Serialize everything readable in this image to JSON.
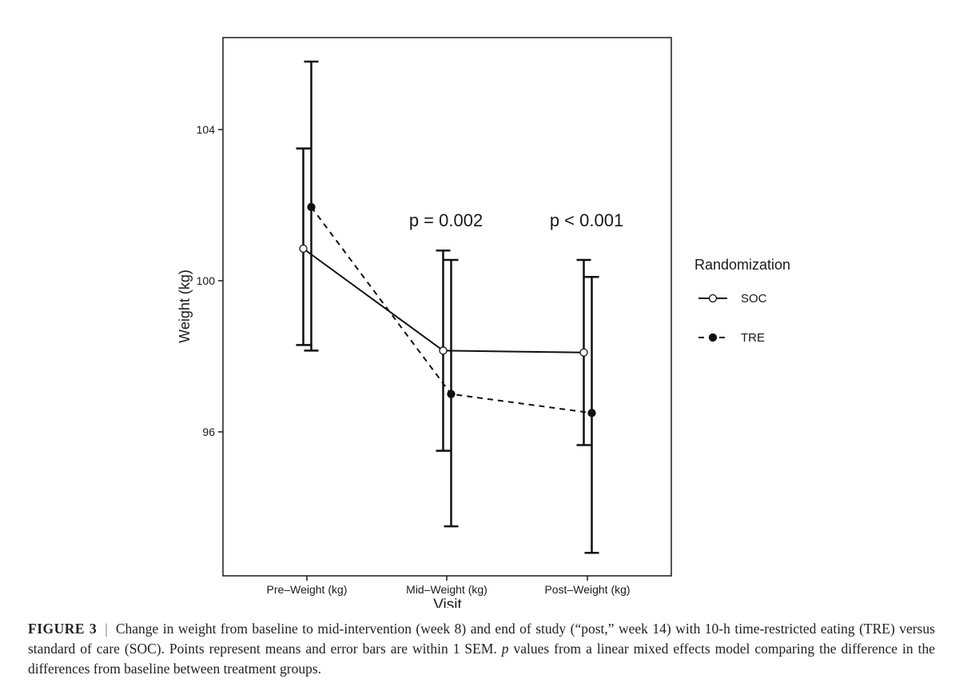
{
  "chart_data": {
    "type": "line",
    "xlabel": "Visit",
    "ylabel": "Weight (kg)",
    "categories": [
      "Pre–Weight (kg)",
      "Mid–Weight (kg)",
      "Post–Weight (kg)"
    ],
    "yticks": [
      96,
      100,
      104
    ],
    "ylim": [
      92.8,
      106.4
    ],
    "grid": false,
    "legend": {
      "title": "Randomization",
      "placement": "right",
      "items": [
        {
          "label": "SOC",
          "style": "solid line, open circle"
        },
        {
          "label": "TRE",
          "style": "dashed line, filled circle"
        }
      ]
    },
    "series": [
      {
        "name": "SOC",
        "values": [
          100.85,
          98.15,
          98.1
        ],
        "error_low": [
          98.3,
          95.5,
          95.65
        ],
        "error_high": [
          103.5,
          100.8,
          100.55
        ]
      },
      {
        "name": "TRE",
        "values": [
          101.95,
          97.0,
          96.5
        ],
        "error_low": [
          98.15,
          93.5,
          92.8
        ],
        "error_high": [
          105.8,
          100.55,
          100.1
        ]
      }
    ],
    "annotations": [
      {
        "category": "Mid–Weight (kg)",
        "text": "p = 0.002"
      },
      {
        "category": "Post–Weight (kg)",
        "text": "p < 0.001"
      }
    ]
  },
  "caption": {
    "label": "FIGURE 3",
    "separator": "|",
    "text_part1": "Change in weight from baseline to mid-intervention (week 8) and end of study (“post,” week 14) with 10-h time-restricted eating (TRE) versus standard of care (SOC). Points represent means and error bars are within 1 SEM. ",
    "p_italic": "p",
    "text_part2": " values from a linear mixed effects model comparing the difference in the differences from baseline between treatment groups."
  }
}
